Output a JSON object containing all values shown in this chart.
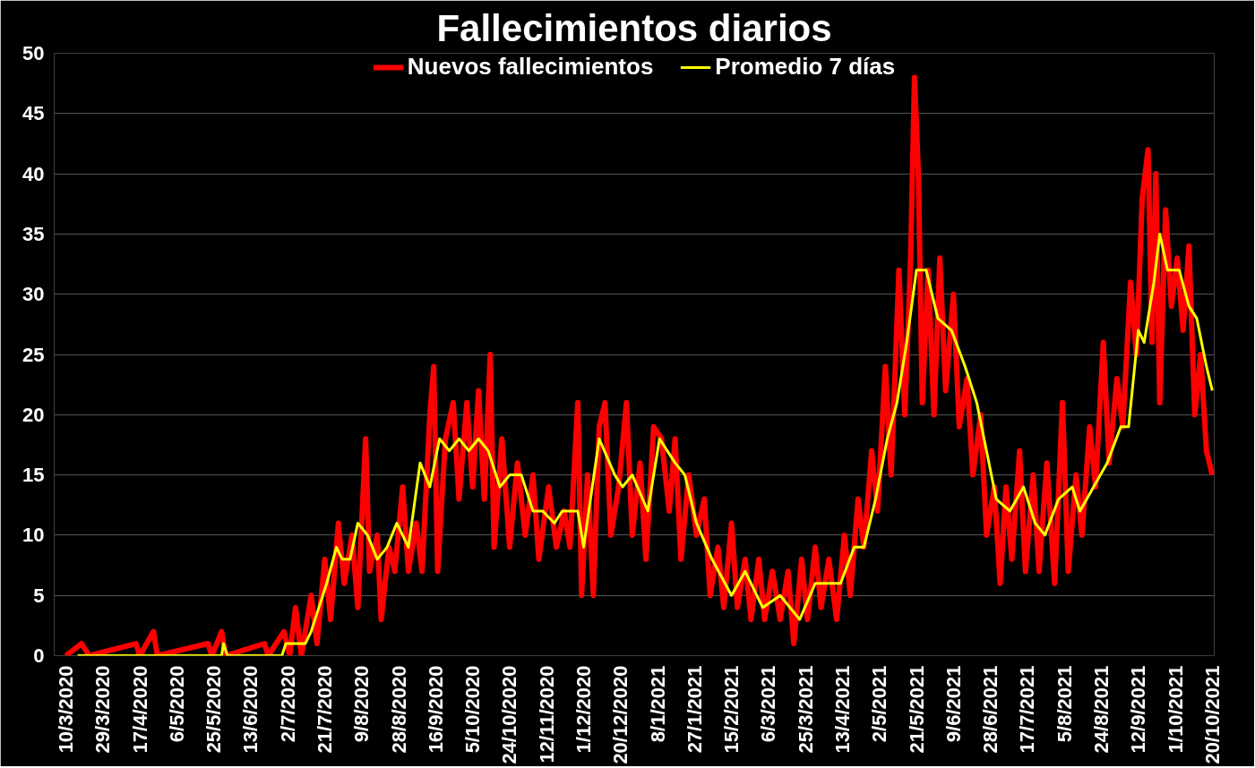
{
  "chart_data": {
    "type": "line",
    "title": "Fallecimientos diarios",
    "legend": "top",
    "grid": "y",
    "line_style": "solid",
    "xlim": [
      "2020-03-04",
      "2021-10-21"
    ],
    "ylim": [
      0,
      50
    ],
    "yticks": [
      0,
      5,
      10,
      15,
      20,
      25,
      30,
      35,
      40,
      45,
      50
    ],
    "xticks": [
      {
        "value": "2020-03-10",
        "label": "10/3/2020"
      },
      {
        "value": "2020-03-29",
        "label": "29/3/2020"
      },
      {
        "value": "2020-04-17",
        "label": "17/4/2020"
      },
      {
        "value": "2020-05-06",
        "label": "6/5/2020"
      },
      {
        "value": "2020-05-25",
        "label": "25/5/2020"
      },
      {
        "value": "2020-06-13",
        "label": "13/6/2020"
      },
      {
        "value": "2020-07-02",
        "label": "2/7/2020"
      },
      {
        "value": "2020-07-21",
        "label": "21/7/2020"
      },
      {
        "value": "2020-08-09",
        "label": "9/8/2020"
      },
      {
        "value": "2020-08-28",
        "label": "28/8/2020"
      },
      {
        "value": "2020-09-16",
        "label": "16/9/2020"
      },
      {
        "value": "2020-10-05",
        "label": "5/10/2020"
      },
      {
        "value": "2020-10-24",
        "label": "24/10/2020"
      },
      {
        "value": "2020-11-12",
        "label": "12/11/2020"
      },
      {
        "value": "2020-12-01",
        "label": "1/12/2020"
      },
      {
        "value": "2020-12-20",
        "label": "20/12/2020"
      },
      {
        "value": "2021-01-08",
        "label": "8/1/2021"
      },
      {
        "value": "2021-01-27",
        "label": "27/1/2021"
      },
      {
        "value": "2021-02-15",
        "label": "15/2/2021"
      },
      {
        "value": "2021-03-06",
        "label": "6/3/2021"
      },
      {
        "value": "2021-03-25",
        "label": "25/3/2021"
      },
      {
        "value": "2021-04-13",
        "label": "13/4/2021"
      },
      {
        "value": "2021-05-02",
        "label": "2/5/2021"
      },
      {
        "value": "2021-05-21",
        "label": "21/5/2021"
      },
      {
        "value": "2021-06-09",
        "label": "9/6/2021"
      },
      {
        "value": "2021-06-28",
        "label": "28/6/2021"
      },
      {
        "value": "2021-07-17",
        "label": "17/7/2021"
      },
      {
        "value": "2021-08-05",
        "label": "5/8/2021"
      },
      {
        "value": "2021-08-24",
        "label": "24/8/2021"
      },
      {
        "value": "2021-09-12",
        "label": "12/9/2021"
      },
      {
        "value": "2021-10-01",
        "label": "1/10/2021"
      },
      {
        "value": "2021-10-20",
        "label": "20/10/2021"
      }
    ],
    "series": [
      {
        "name": "Nuevos fallecimientos",
        "color": "#ff0000",
        "x": [
          "2020-03-10",
          "2020-03-18",
          "2020-03-22",
          "2020-04-15",
          "2020-04-17",
          "2020-04-24",
          "2020-04-26",
          "2020-05-22",
          "2020-05-24",
          "2020-05-29",
          "2020-05-31",
          "2020-06-20",
          "2020-06-22",
          "2020-06-30",
          "2020-07-03",
          "2020-07-06",
          "2020-07-09",
          "2020-07-14",
          "2020-07-17",
          "2020-07-21",
          "2020-07-24",
          "2020-07-28",
          "2020-07-31",
          "2020-08-04",
          "2020-08-07",
          "2020-08-11",
          "2020-08-13",
          "2020-08-17",
          "2020-08-19",
          "2020-08-23",
          "2020-08-26",
          "2020-08-30",
          "2020-09-02",
          "2020-09-06",
          "2020-09-09",
          "2020-09-13",
          "2020-09-15",
          "2020-09-17",
          "2020-09-21",
          "2020-09-25",
          "2020-09-28",
          "2020-10-02",
          "2020-10-05",
          "2020-10-08",
          "2020-10-11",
          "2020-10-14",
          "2020-10-16",
          "2020-10-20",
          "2020-10-24",
          "2020-10-28",
          "2020-11-01",
          "2020-11-05",
          "2020-11-08",
          "2020-11-13",
          "2020-11-17",
          "2020-11-21",
          "2020-11-24",
          "2020-11-28",
          "2020-11-30",
          "2020-12-03",
          "2020-12-06",
          "2020-12-09",
          "2020-12-12",
          "2020-12-15",
          "2020-12-19",
          "2020-12-23",
          "2020-12-26",
          "2020-12-30",
          "2021-01-02",
          "2021-01-06",
          "2021-01-10",
          "2021-01-14",
          "2021-01-17",
          "2021-01-20",
          "2021-01-24",
          "2021-01-28",
          "2021-02-01",
          "2021-02-04",
          "2021-02-08",
          "2021-02-11",
          "2021-02-15",
          "2021-02-18",
          "2021-02-22",
          "2021-02-25",
          "2021-03-01",
          "2021-03-04",
          "2021-03-08",
          "2021-03-12",
          "2021-03-16",
          "2021-03-19",
          "2021-03-23",
          "2021-03-26",
          "2021-03-30",
          "2021-04-02",
          "2021-04-06",
          "2021-04-10",
          "2021-04-14",
          "2021-04-17",
          "2021-04-21",
          "2021-04-24",
          "2021-04-28",
          "2021-05-01",
          "2021-05-05",
          "2021-05-08",
          "2021-05-12",
          "2021-05-15",
          "2021-05-18",
          "2021-05-20",
          "2021-05-22",
          "2021-05-24",
          "2021-05-27",
          "2021-05-30",
          "2021-06-02",
          "2021-06-05",
          "2021-06-09",
          "2021-06-12",
          "2021-06-16",
          "2021-06-19",
          "2021-06-23",
          "2021-06-26",
          "2021-06-30",
          "2021-07-03",
          "2021-07-06",
          "2021-07-09",
          "2021-07-13",
          "2021-07-16",
          "2021-07-20",
          "2021-07-23",
          "2021-07-27",
          "2021-07-31",
          "2021-08-04",
          "2021-08-07",
          "2021-08-11",
          "2021-08-14",
          "2021-08-18",
          "2021-08-21",
          "2021-08-25",
          "2021-08-28",
          "2021-09-01",
          "2021-09-04",
          "2021-09-08",
          "2021-09-11",
          "2021-09-14",
          "2021-09-17",
          "2021-09-19",
          "2021-09-21",
          "2021-09-23",
          "2021-09-26",
          "2021-09-29",
          "2021-10-02",
          "2021-10-05",
          "2021-10-08",
          "2021-10-11",
          "2021-10-14",
          "2021-10-17",
          "2021-10-20"
        ],
        "values": [
          0,
          1,
          0,
          1,
          0,
          2,
          0,
          1,
          0,
          2,
          0,
          1,
          0,
          2,
          0,
          4,
          0,
          5,
          1,
          8,
          3,
          11,
          6,
          10,
          4,
          18,
          7,
          10,
          3,
          9,
          7,
          14,
          7,
          11,
          7,
          20,
          24,
          7,
          18,
          21,
          13,
          21,
          14,
          22,
          13,
          25,
          9,
          18,
          9,
          16,
          10,
          15,
          8,
          14,
          9,
          12,
          9,
          21,
          5,
          15,
          5,
          19,
          21,
          10,
          14,
          21,
          10,
          16,
          8,
          19,
          18,
          12,
          18,
          8,
          15,
          10,
          13,
          5,
          9,
          4,
          11,
          4,
          8,
          3,
          8,
          3,
          7,
          3,
          7,
          1,
          8,
          3,
          9,
          4,
          8,
          3,
          10,
          5,
          13,
          9,
          17,
          12,
          24,
          15,
          32,
          20,
          33,
          48,
          40,
          21,
          32,
          20,
          33,
          22,
          30,
          19,
          23,
          15,
          20,
          10,
          14,
          6,
          14,
          8,
          17,
          7,
          15,
          7,
          16,
          6,
          21,
          7,
          15,
          10,
          19,
          14,
          26,
          16,
          23,
          19,
          31,
          25,
          38,
          42,
          26,
          40,
          21,
          37,
          29,
          33,
          27,
          34,
          20,
          25,
          17,
          15
        ]
      },
      {
        "name": "Promedio 7 días",
        "color": "#ffff00",
        "x": [
          "2020-03-16",
          "2020-05-29",
          "2020-05-30",
          "2020-06-01",
          "2020-06-29",
          "2020-07-01",
          "2020-07-11",
          "2020-07-14",
          "2020-07-18",
          "2020-07-22",
          "2020-07-27",
          "2020-07-30",
          "2020-08-03",
          "2020-08-07",
          "2020-08-12",
          "2020-08-17",
          "2020-08-22",
          "2020-08-27",
          "2020-09-02",
          "2020-09-08",
          "2020-09-13",
          "2020-09-18",
          "2020-09-23",
          "2020-09-28",
          "2020-10-03",
          "2020-10-08",
          "2020-10-13",
          "2020-10-19",
          "2020-10-24",
          "2020-10-30",
          "2020-11-05",
          "2020-11-10",
          "2020-11-16",
          "2020-11-20",
          "2020-11-28",
          "2020-12-01",
          "2020-12-09",
          "2020-12-17",
          "2020-12-21",
          "2020-12-26",
          "2021-01-03",
          "2021-01-09",
          "2021-01-17",
          "2021-01-22",
          "2021-01-28",
          "2021-02-05",
          "2021-02-15",
          "2021-02-22",
          "2021-03-03",
          "2021-03-12",
          "2021-03-22",
          "2021-03-30",
          "2021-04-12",
          "2021-04-19",
          "2021-04-24",
          "2021-04-30",
          "2021-05-06",
          "2021-05-11",
          "2021-05-16",
          "2021-05-21",
          "2021-05-26",
          "2021-06-01",
          "2021-06-08",
          "2021-06-15",
          "2021-06-21",
          "2021-06-26",
          "2021-07-01",
          "2021-07-08",
          "2021-07-15",
          "2021-07-21",
          "2021-07-26",
          "2021-08-02",
          "2021-08-09",
          "2021-08-13",
          "2021-08-20",
          "2021-08-27",
          "2021-09-03",
          "2021-09-07",
          "2021-09-12",
          "2021-09-15",
          "2021-09-20",
          "2021-09-23",
          "2021-09-27",
          "2021-10-03",
          "2021-10-08",
          "2021-10-12",
          "2021-10-17",
          "2021-10-20"
        ],
        "values": [
          0,
          0,
          1,
          0,
          0,
          1,
          1,
          2,
          4,
          6,
          9,
          8,
          8,
          11,
          10,
          8,
          9,
          11,
          9,
          16,
          14,
          18,
          17,
          18,
          17,
          18,
          17,
          14,
          15,
          15,
          12,
          12,
          11,
          12,
          12,
          9,
          18,
          15,
          14,
          15,
          12,
          18,
          16,
          15,
          11,
          8,
          5,
          7,
          4,
          5,
          3,
          6,
          6,
          9,
          9,
          13,
          18,
          21,
          26,
          32,
          32,
          28,
          27,
          24,
          21,
          17,
          13,
          12,
          14,
          11,
          10,
          13,
          14,
          12,
          14,
          16,
          19,
          19,
          27,
          26,
          31,
          35,
          32,
          32,
          29,
          28,
          24,
          22
        ]
      }
    ]
  }
}
